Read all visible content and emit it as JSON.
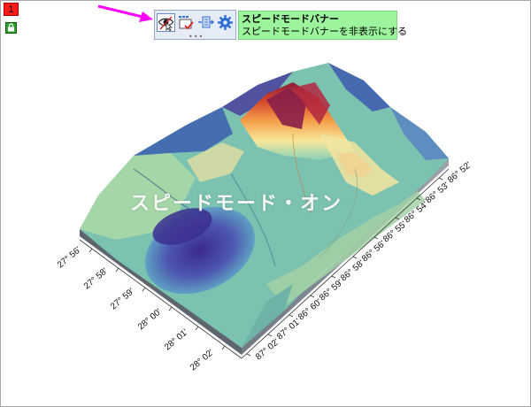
{
  "page_badge": "1",
  "tooltip": {
    "title": "スピードモードバナー",
    "description": "スピードモードバナーを非表示にする"
  },
  "toolbar": {
    "buttons": [
      "eye-icon",
      "screen-check-icon",
      "data-connector-icon",
      "gear-icon"
    ],
    "more": "•••"
  },
  "annotation_arrow_color": "#ff00ff",
  "overlay_text": "スピードモード・オン",
  "left_axis_ticks": [
    "27° 56'",
    "27° 58'",
    "27° 59'",
    "28° 00'",
    "28° 01'",
    "28° 02'"
  ],
  "right_axis_ticks": [
    "86° 52'",
    "86° 53'",
    "86° 54'",
    "86° 55'",
    "86° 56'",
    "86° 58'",
    "86° 59'",
    "86° 60'",
    "87° 01'",
    "87° 02'"
  ]
}
